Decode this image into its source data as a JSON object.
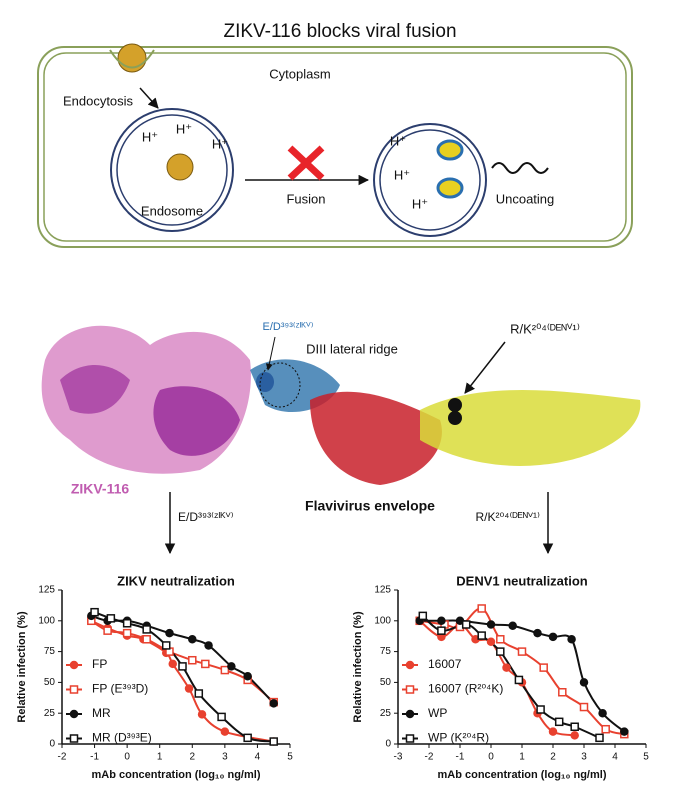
{
  "diagram": {
    "title": "ZIKV-116 blocks viral fusion",
    "cytoplasm": "Cytoplasm",
    "endocytosis": "Endocytosis",
    "endosome": "Endosome",
    "fusion": "Fusion",
    "uncoating": "Uncoating",
    "proton": "H⁺"
  },
  "structure": {
    "site_zikv": "E/D³⁹³⁽ᶻᴵᴷⱽ⁾",
    "ridge": "DIII lateral ridge",
    "site_denv": "R/K²⁰⁴⁽ᴰᴱᴺⱽ¹⁾",
    "antibody": "ZIKV-116",
    "envelope": "Flavivirus envelope",
    "arrow_left": "E/D³⁹³⁽ᶻᴵᴷⱽ⁾",
    "arrow_right": "R/K²⁰⁴⁽ᴰᴱᴺⱽ¹⁾"
  },
  "chart_data": [
    {
      "type": "scatter",
      "title": "ZIKV neutralization",
      "x_label": "mAb concentration (log₁₀ ng/ml)",
      "y_label": "Relative infection (%)",
      "xlim": [
        -2,
        5
      ],
      "xticks": [
        -2,
        -1,
        0,
        1,
        2,
        3,
        4,
        5
      ],
      "ylim": [
        0,
        125
      ],
      "yticks": [
        0,
        25,
        50,
        75,
        100,
        125
      ],
      "grid": false,
      "legend": "lower left",
      "series": [
        {
          "name": "FP",
          "color": "#e8412f",
          "marker": "circle",
          "filled": true,
          "x": [
            -1.1,
            -0.6,
            0,
            0.5,
            1.2,
            1.4,
            1.9,
            2.3,
            3,
            4.5
          ],
          "values": [
            100,
            94,
            88,
            85,
            74,
            65,
            45,
            24,
            10,
            2
          ]
        },
        {
          "name": "FP (E³⁹³D)",
          "color": "#e8412f",
          "marker": "square",
          "filled": false,
          "x": [
            -1.1,
            -0.6,
            0,
            0.6,
            1.3,
            2,
            2.4,
            3,
            3.7,
            4.5
          ],
          "values": [
            100,
            92,
            90,
            85,
            75,
            68,
            65,
            60,
            52,
            34
          ]
        },
        {
          "name": "MR",
          "color": "#111111",
          "marker": "circle",
          "filled": true,
          "x": [
            -1.1,
            -0.6,
            0,
            0.6,
            1.3,
            2,
            2.5,
            3.2,
            3.7,
            4.5
          ],
          "values": [
            104,
            100,
            100,
            96,
            90,
            85,
            80,
            63,
            55,
            33
          ]
        },
        {
          "name": "MR (D³⁹³E)",
          "color": "#111111",
          "marker": "square",
          "filled": false,
          "x": [
            -1,
            -0.5,
            0,
            0.6,
            1.2,
            1.7,
            2.2,
            2.9,
            3.7,
            4.5
          ],
          "values": [
            107,
            102,
            98,
            93,
            80,
            63,
            41,
            22,
            5,
            2
          ]
        }
      ]
    },
    {
      "type": "scatter",
      "title": "DENV1 neutralization",
      "x_label": "mAb concentration (log₁₀ ng/ml)",
      "y_label": "Relative infection (%)",
      "xlim": [
        -3,
        5
      ],
      "xticks": [
        -3,
        -2,
        -1,
        0,
        1,
        2,
        3,
        4,
        5
      ],
      "ylim": [
        0,
        125
      ],
      "yticks": [
        0,
        25,
        50,
        75,
        100,
        125
      ],
      "grid": false,
      "legend": "lower left",
      "series": [
        {
          "name": "16007",
          "color": "#e8412f",
          "marker": "circle",
          "filled": true,
          "x": [
            -2.3,
            -1.6,
            -1,
            -0.5,
            0,
            0.5,
            1,
            1.5,
            2,
            2.7
          ],
          "values": [
            100,
            87,
            97,
            85,
            83,
            62,
            50,
            25,
            10,
            7
          ]
        },
        {
          "name": "16007 (R²⁰⁴K)",
          "color": "#e8412f",
          "marker": "square",
          "filled": false,
          "x": [
            -2.3,
            -1.5,
            -1,
            -0.3,
            0.3,
            1,
            1.7,
            2.3,
            3,
            3.7,
            4.3
          ],
          "values": [
            100,
            97,
            95,
            110,
            85,
            75,
            62,
            42,
            30,
            12,
            8
          ]
        },
        {
          "name": "WP",
          "color": "#111111",
          "marker": "circle",
          "filled": true,
          "x": [
            -2.3,
            -1.6,
            -1,
            0,
            0.7,
            1.5,
            2,
            2.6,
            3,
            3.6,
            4.3
          ],
          "values": [
            100,
            100,
            100,
            97,
            96,
            90,
            87,
            85,
            50,
            25,
            10
          ]
        },
        {
          "name": "WP (K²⁰⁴R)",
          "color": "#111111",
          "marker": "square",
          "filled": false,
          "x": [
            -2.2,
            -1.6,
            -0.8,
            -0.3,
            0.3,
            0.9,
            1.6,
            2.2,
            2.7,
            3.5
          ],
          "values": [
            104,
            92,
            97,
            88,
            75,
            52,
            28,
            18,
            14,
            5
          ]
        }
      ]
    }
  ]
}
